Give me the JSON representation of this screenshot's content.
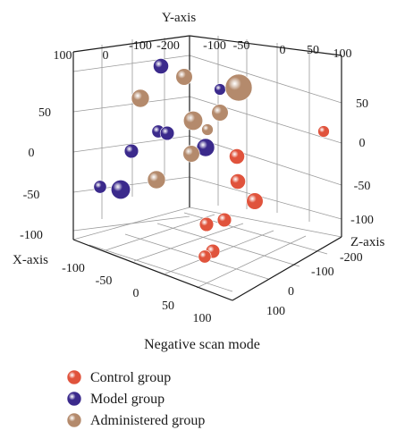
{
  "chart_data": {
    "type": "scatter",
    "subtitle": "Negative scan mode",
    "xlabel": "X-axis",
    "ylabel": "Y-axis",
    "zlabel": "Z-axis",
    "x_ticks": [
      "100",
      "50",
      "0",
      "-50",
      "-100"
    ],
    "y_ticks": [
      "100",
      "0",
      "-100",
      "-200"
    ],
    "y_ticks_right": [
      "-100",
      "-50",
      "0",
      "50"
    ],
    "z_ticks_left": [
      "100",
      "50",
      "0",
      "-50",
      "-100"
    ],
    "z_ticks_right": [
      "50",
      "0",
      "-50",
      "-100"
    ],
    "x_ticks_bottom": [
      "-100",
      "-50",
      "0",
      "50",
      "100"
    ],
    "depth_ticks": [
      "-200",
      "-100",
      "0",
      "100"
    ],
    "colors": {
      "control": "#e0533c",
      "model": "#3b2a8c",
      "administered": "#b48a6c"
    },
    "series": [
      {
        "name": "Control group",
        "color_key": "control",
        "points": [
          {
            "sx": 362,
            "sy": 147,
            "s": 9
          },
          {
            "sx": 265,
            "sy": 175,
            "s": 12
          },
          {
            "sx": 266,
            "sy": 203,
            "s": 12
          },
          {
            "sx": 285,
            "sy": 225,
            "s": 13
          },
          {
            "sx": 251,
            "sy": 246,
            "s": 11
          },
          {
            "sx": 231,
            "sy": 251,
            "s": 11
          },
          {
            "sx": 238,
            "sy": 281,
            "s": 11
          },
          {
            "sx": 229,
            "sy": 287,
            "s": 10
          }
        ]
      },
      {
        "name": "Model group",
        "color_key": "model",
        "points": [
          {
            "sx": 180,
            "sy": 74,
            "s": 12
          },
          {
            "sx": 246,
            "sy": 100,
            "s": 9
          },
          {
            "sx": 177,
            "sy": 147,
            "s": 10
          },
          {
            "sx": 187,
            "sy": 149,
            "s": 11
          },
          {
            "sx": 230,
            "sy": 165,
            "s": 14
          },
          {
            "sx": 147,
            "sy": 169,
            "s": 11
          },
          {
            "sx": 135,
            "sy": 212,
            "s": 15
          },
          {
            "sx": 112,
            "sy": 209,
            "s": 10
          }
        ]
      },
      {
        "name": "Administered group",
        "color_key": "administered",
        "points": [
          {
            "sx": 206,
            "sy": 86,
            "s": 13
          },
          {
            "sx": 267,
            "sy": 98,
            "s": 21
          },
          {
            "sx": 157,
            "sy": 110,
            "s": 14
          },
          {
            "sx": 246,
            "sy": 126,
            "s": 13
          },
          {
            "sx": 216,
            "sy": 135,
            "s": 15
          },
          {
            "sx": 232,
            "sy": 145,
            "s": 9
          },
          {
            "sx": 214,
            "sy": 172,
            "s": 13
          },
          {
            "sx": 175,
            "sy": 201,
            "s": 14
          }
        ]
      }
    ]
  },
  "legend": [
    {
      "label": "Control group",
      "color_key": "control"
    },
    {
      "label": "Model group",
      "color_key": "model"
    },
    {
      "label": "Administered group",
      "color_key": "administered"
    }
  ]
}
